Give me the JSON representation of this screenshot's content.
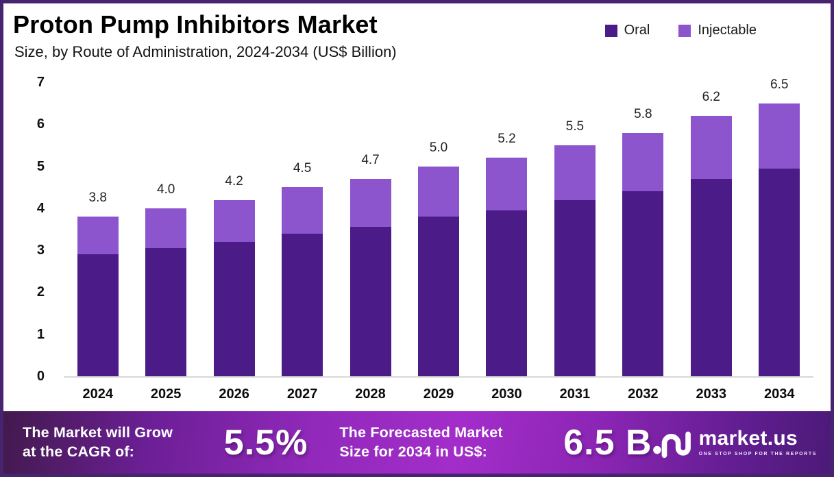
{
  "header": {
    "title": "Proton Pump Inhibitors Market",
    "subtitle": "Size, by Route of Administration, 2024-2034 (US$ Billion)"
  },
  "legend": [
    {
      "label": "Oral",
      "color": "#4B1C87"
    },
    {
      "label": "Injectable",
      "color": "#8C55CD"
    }
  ],
  "chart_data": {
    "type": "bar",
    "stacked": true,
    "title": "Proton Pump Inhibitors Market Size, by Route of Administration, 2024-2034 (US$ Billion)",
    "xlabel": "",
    "ylabel": "US$ Billion",
    "categories": [
      "2024",
      "2025",
      "2026",
      "2027",
      "2028",
      "2029",
      "2030",
      "2031",
      "2032",
      "2033",
      "2034"
    ],
    "series": [
      {
        "name": "Oral",
        "color": "#4B1C87",
        "values": [
          2.9,
          3.05,
          3.2,
          3.4,
          3.55,
          3.8,
          3.95,
          4.2,
          4.4,
          4.7,
          4.95
        ]
      },
      {
        "name": "Injectable",
        "color": "#8C55CD",
        "values": [
          0.9,
          0.95,
          1.0,
          1.1,
          1.15,
          1.2,
          1.25,
          1.3,
          1.4,
          1.5,
          1.55
        ]
      }
    ],
    "totals": [
      3.8,
      4.0,
      4.2,
      4.5,
      4.7,
      5.0,
      5.2,
      5.5,
      5.8,
      6.2,
      6.5
    ],
    "total_labels": [
      "3.8",
      "4.0",
      "4.2",
      "4.5",
      "4.7",
      "5.0",
      "5.2",
      "5.5",
      "5.8",
      "6.2",
      "6.5"
    ],
    "ylim": [
      0,
      7
    ],
    "yticks": [
      0,
      1,
      2,
      3,
      4,
      5,
      6,
      7
    ],
    "grid": false,
    "legend_position": "top-right"
  },
  "footer": {
    "cagr_line1": "The Market will Grow",
    "cagr_line2": "at the CAGR of:",
    "cagr_value": "5.5%",
    "forecast_line1": "The Forecasted Market",
    "forecast_line2": "Size for 2034 in US$:",
    "forecast_value": "6.5 B",
    "brand_name": "market.us",
    "brand_tagline": "ONE STOP SHOP FOR THE REPORTS"
  },
  "colors": {
    "frame_border": "#46246E",
    "oral": "#4B1C87",
    "injectable": "#8C55CD",
    "footer_gradient_mid": "#A32DCA",
    "axis_line": "#D8D8D8"
  }
}
